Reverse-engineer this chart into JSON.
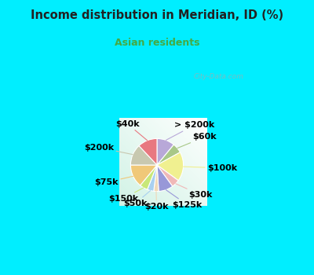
{
  "title": "Income distribution in Meridian, ID (%)",
  "subtitle": "Asian residents",
  "title_color": "#222222",
  "subtitle_color": "#44aa44",
  "background_color": "#00eeff",
  "slices": [
    {
      "label": "> $200k",
      "value": 11,
      "color": "#b8a8d8"
    },
    {
      "label": "$60k",
      "value": 6,
      "color": "#a8c888"
    },
    {
      "label": "$100k",
      "value": 18,
      "color": "#f0f090"
    },
    {
      "label": "$30k",
      "value": 5,
      "color": "#f0b8b8"
    },
    {
      "label": "$125k",
      "value": 9,
      "color": "#9898d8"
    },
    {
      "label": "$20k",
      "value": 3,
      "color": "#f0d8b8"
    },
    {
      "label": "$50k",
      "value": 4,
      "color": "#a8d0f0"
    },
    {
      "label": "$150k",
      "value": 5,
      "color": "#c8e878"
    },
    {
      "label": "$75k",
      "value": 14,
      "color": "#f0c878"
    },
    {
      "label": "$200k",
      "value": 13,
      "color": "#c8c8b0"
    },
    {
      "label": "$40k",
      "value": 12,
      "color": "#e87880"
    }
  ],
  "label_fontsize": 8,
  "label_color": "#000000",
  "watermark": "City-Data.com"
}
